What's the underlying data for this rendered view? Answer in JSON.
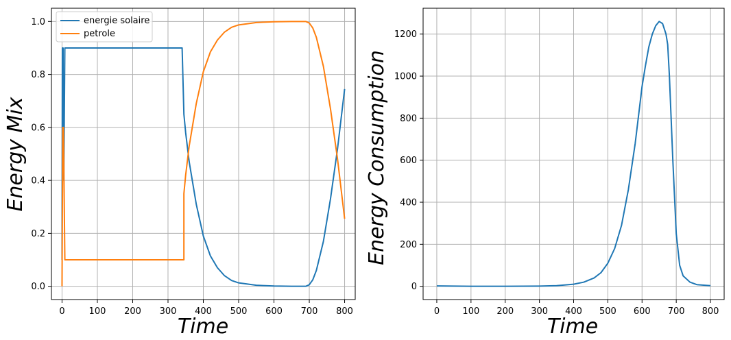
{
  "chart_data": [
    {
      "type": "line",
      "xlabel": "Time",
      "ylabel": "Energy Mix",
      "xlim": [
        -30,
        830
      ],
      "ylim": [
        -0.05,
        1.05
      ],
      "xticks": [
        0,
        100,
        200,
        300,
        400,
        500,
        600,
        700,
        800
      ],
      "yticks": [
        0.0,
        0.2,
        0.4,
        0.6,
        0.8,
        1.0
      ],
      "ytick_labels": [
        "0.0",
        "0.2",
        "0.4",
        "0.6",
        "0.8",
        "1.0"
      ],
      "grid": true,
      "legend_position": "top-left",
      "series": [
        {
          "name": "energie solaire",
          "color": "#1f77b4",
          "points": [
            [
              0,
              0.1
            ],
            [
              1,
              0.9
            ],
            [
              3,
              0.9
            ],
            [
              5,
              0.4
            ],
            [
              8,
              0.9
            ],
            [
              10,
              0.9
            ],
            [
              340,
              0.9
            ],
            [
              345,
              0.65
            ],
            [
              350,
              0.58
            ],
            [
              360,
              0.47
            ],
            [
              380,
              0.31
            ],
            [
              400,
              0.19
            ],
            [
              420,
              0.115
            ],
            [
              440,
              0.07
            ],
            [
              460,
              0.04
            ],
            [
              480,
              0.022
            ],
            [
              500,
              0.013
            ],
            [
              550,
              0.004
            ],
            [
              600,
              0.001
            ],
            [
              650,
              0.0
            ],
            [
              690,
              0.0
            ],
            [
              700,
              0.006
            ],
            [
              710,
              0.025
            ],
            [
              720,
              0.06
            ],
            [
              740,
              0.17
            ],
            [
              760,
              0.33
            ],
            [
              780,
              0.52
            ],
            [
              800,
              0.745
            ]
          ]
        },
        {
          "name": "petrole",
          "color": "#ff7f0e",
          "points": [
            [
              0,
              0.0
            ],
            [
              2,
              0.6
            ],
            [
              4,
              0.6
            ],
            [
              8,
              0.1
            ],
            [
              12,
              0.1
            ],
            [
              345,
              0.1
            ],
            [
              345,
              0.35
            ],
            [
              350,
              0.42
            ],
            [
              360,
              0.53
            ],
            [
              380,
              0.69
            ],
            [
              400,
              0.81
            ],
            [
              420,
              0.885
            ],
            [
              440,
              0.93
            ],
            [
              460,
              0.96
            ],
            [
              480,
              0.978
            ],
            [
              500,
              0.987
            ],
            [
              550,
              0.996
            ],
            [
              600,
              0.999
            ],
            [
              650,
              1.0
            ],
            [
              690,
              1.0
            ],
            [
              700,
              0.994
            ],
            [
              710,
              0.975
            ],
            [
              720,
              0.94
            ],
            [
              740,
              0.83
            ],
            [
              760,
              0.67
            ],
            [
              780,
              0.48
            ],
            [
              800,
              0.255
            ]
          ]
        }
      ]
    },
    {
      "type": "line",
      "xlabel": "Time",
      "ylabel": "Energy Consumption",
      "xlim": [
        -40,
        840
      ],
      "ylim": [
        -63,
        1323
      ],
      "xticks": [
        0,
        100,
        200,
        300,
        400,
        500,
        600,
        700,
        800
      ],
      "yticks": [
        0,
        200,
        400,
        600,
        800,
        1000,
        1200
      ],
      "grid": true,
      "series": [
        {
          "color": "#1f77b4",
          "points": [
            [
              0,
              2
            ],
            [
              100,
              0
            ],
            [
              200,
              0
            ],
            [
              300,
              1
            ],
            [
              350,
              3
            ],
            [
              400,
              10
            ],
            [
              430,
              20
            ],
            [
              460,
              40
            ],
            [
              480,
              65
            ],
            [
              500,
              110
            ],
            [
              520,
              180
            ],
            [
              540,
              290
            ],
            [
              560,
              460
            ],
            [
              580,
              680
            ],
            [
              600,
              950
            ],
            [
              610,
              1050
            ],
            [
              620,
              1140
            ],
            [
              630,
              1200
            ],
            [
              640,
              1240
            ],
            [
              650,
              1260
            ],
            [
              660,
              1250
            ],
            [
              670,
              1200
            ],
            [
              675,
              1150
            ],
            [
              680,
              1000
            ],
            [
              690,
              600
            ],
            [
              700,
              250
            ],
            [
              710,
              100
            ],
            [
              720,
              50
            ],
            [
              740,
              20
            ],
            [
              760,
              8
            ],
            [
              800,
              3
            ]
          ]
        }
      ]
    }
  ]
}
